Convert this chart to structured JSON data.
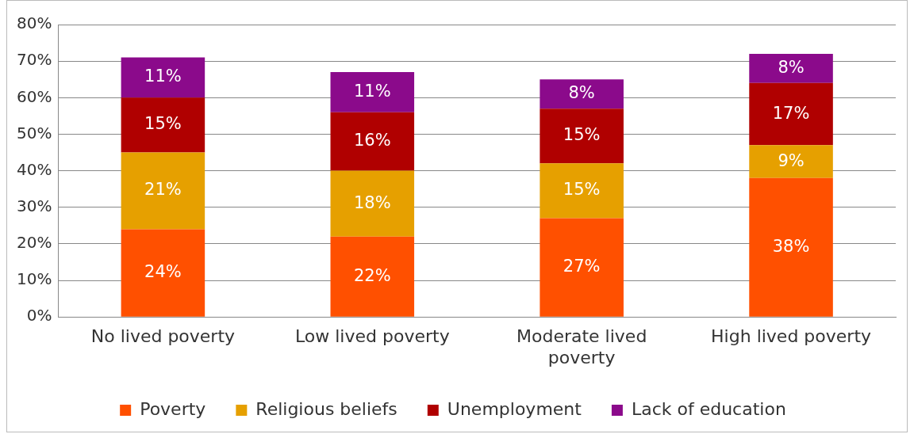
{
  "chart_data": {
    "type": "bar",
    "stacked": true,
    "categories": [
      "No lived poverty",
      "Low lived poverty",
      "Moderate lived poverty",
      "High lived poverty"
    ],
    "series": [
      {
        "name": "Poverty",
        "color": "#ff5000",
        "values": [
          24,
          22,
          27,
          38
        ],
        "value_labels": [
          "24%",
          "22%",
          "27%",
          "38%"
        ]
      },
      {
        "name": "Religious beliefs",
        "color": "#e6a000",
        "values": [
          21,
          18,
          15,
          9
        ],
        "value_labels": [
          "21%",
          "18%",
          "15%",
          "9%"
        ]
      },
      {
        "name": "Unemployment",
        "color": "#b00000",
        "values": [
          15,
          16,
          15,
          17
        ],
        "value_labels": [
          "15%",
          "16%",
          "15%",
          "17%"
        ]
      },
      {
        "name": "Lack of education",
        "color": "#8b0a8b",
        "values": [
          11,
          11,
          8,
          8
        ],
        "value_labels": [
          "11%",
          "11%",
          "8%",
          "8%"
        ]
      }
    ],
    "ylim": [
      0,
      80
    ],
    "yticks": [
      {
        "value": 0,
        "label": "0%"
      },
      {
        "value": 10,
        "label": "10%"
      },
      {
        "value": 20,
        "label": "20%"
      },
      {
        "value": 30,
        "label": "30%"
      },
      {
        "value": 40,
        "label": "40%"
      },
      {
        "value": 50,
        "label": "50%"
      },
      {
        "value": 60,
        "label": "60%"
      },
      {
        "value": 70,
        "label": "70%"
      },
      {
        "value": 80,
        "label": "80%"
      }
    ],
    "grid": "y",
    "legend": "bottom"
  }
}
